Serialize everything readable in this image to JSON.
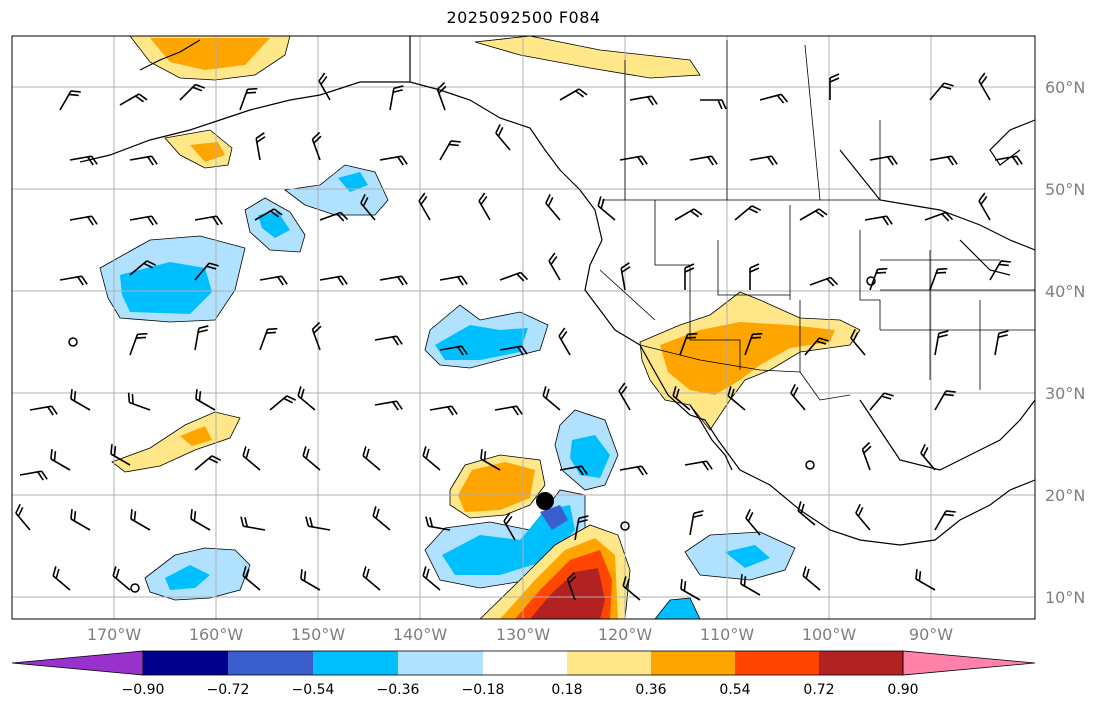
{
  "title": "2025092500 F084",
  "lat_labels": [
    "60°N",
    "50°N",
    "40°N",
    "30°N",
    "20°N",
    "10°N"
  ],
  "lon_labels": [
    "170°W",
    "160°W",
    "150°W",
    "140°W",
    "130°W",
    "120°W",
    "110°W",
    "100°W",
    "90°W"
  ],
  "colorbar": {
    "tick_labels": [
      "−0.90",
      "−0.72",
      "−0.54",
      "−0.36",
      "−0.18",
      "0.18",
      "0.36",
      "0.54",
      "0.72",
      "0.90"
    ],
    "colors": [
      "#9932cc",
      "#00008b",
      "#3a5fcd",
      "#00bfff",
      "#b0e2ff",
      "#ffffff",
      "#ffe78a",
      "#ffa500",
      "#ff4500",
      "#b22222",
      "#ff82ab"
    ]
  },
  "chart_data": {
    "type": "heatmap",
    "title": "2025092500 F084",
    "lon_range": [
      "180°W",
      "82°W"
    ],
    "lat_range": [
      "8°N",
      "65°N"
    ],
    "levels": [
      -0.9,
      -0.72,
      -0.54,
      -0.36,
      -0.18,
      0.18,
      0.36,
      0.54,
      0.72,
      0.9
    ],
    "overlays": [
      "wind barbs",
      "coastlines",
      "state/province borders",
      "lat/lon grid"
    ],
    "marker": "black dot near 127°W, 20°N"
  }
}
